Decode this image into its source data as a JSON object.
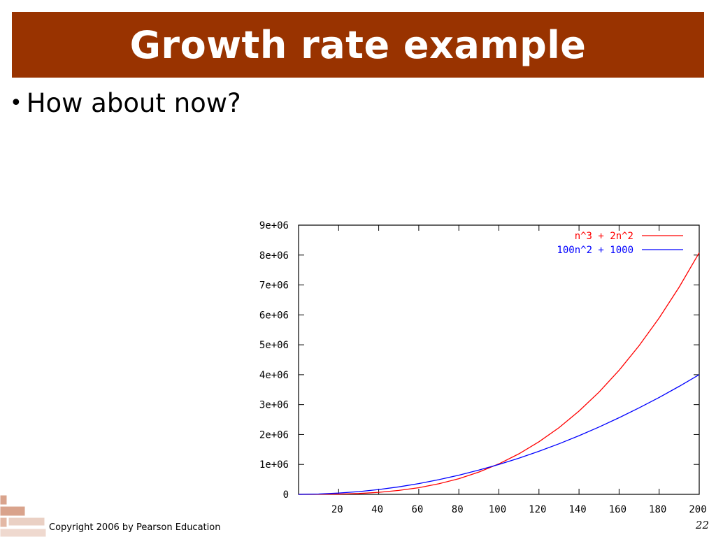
{
  "slide": {
    "title": "Growth rate example",
    "bullet": "How about now?",
    "footer": "Copyright 2006 by Pearson Education",
    "page_number": "22"
  },
  "colors": {
    "title_bg": "#993300",
    "series_red": "#ff0000",
    "series_blue": "#0000ff"
  },
  "chart_data": {
    "type": "line",
    "xlim": [
      0,
      200
    ],
    "ylim": [
      0,
      9000000
    ],
    "xticks": [
      20,
      40,
      60,
      80,
      100,
      120,
      140,
      160,
      180,
      200
    ],
    "xtick_labels": [
      "20",
      "40",
      "60",
      "80",
      "100",
      "120",
      "140",
      "160",
      "180",
      "200"
    ],
    "yticks": [
      0,
      1000000,
      2000000,
      3000000,
      4000000,
      5000000,
      6000000,
      7000000,
      8000000,
      9000000
    ],
    "ytick_labels": [
      "0",
      "1e+06",
      "2e+06",
      "3e+06",
      "4e+06",
      "5e+06",
      "6e+06",
      "7e+06",
      "8e+06",
      "9e+06"
    ],
    "legend_position": "top-right",
    "grid": false,
    "x": [
      0,
      10,
      20,
      30,
      40,
      50,
      60,
      70,
      80,
      90,
      100,
      110,
      120,
      130,
      140,
      150,
      160,
      170,
      180,
      190,
      200
    ],
    "series": [
      {
        "name": "n^3 + 2n^2",
        "color": "#ff0000",
        "values": [
          0,
          1200,
          8800,
          28800,
          67200,
          130000,
          223200,
          352800,
          524800,
          745200,
          1020000,
          1355200,
          1756800,
          2230800,
          2783200,
          3420000,
          4147200,
          4970800,
          5896800,
          6931200,
          8080000
        ]
      },
      {
        "name": "100n^2 + 1000",
        "color": "#0000ff",
        "values": [
          1000,
          11000,
          41000,
          91000,
          161000,
          251000,
          361000,
          491000,
          641000,
          811000,
          1001000,
          1211000,
          1441000,
          1691000,
          1961000,
          2251000,
          2561000,
          2891000,
          3241000,
          3611000,
          4001000
        ]
      }
    ]
  }
}
